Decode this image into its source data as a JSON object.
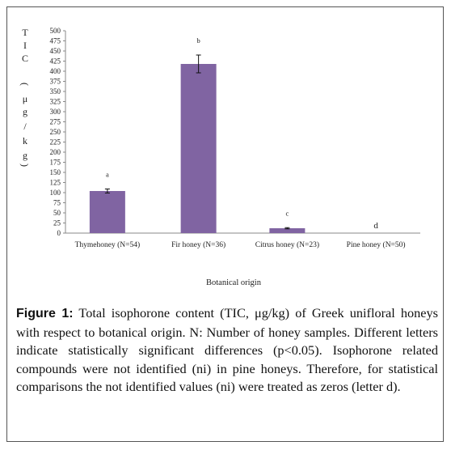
{
  "chart_data": {
    "type": "bar",
    "categories": [
      "Thymehoney (N=54)",
      "Fir honey (N=36)",
      "Citrus honey (N=23)",
      "Pine honey (N=50)"
    ],
    "values": [
      104,
      418,
      12,
      0
    ],
    "errors": [
      5,
      22,
      1.5,
      0
    ],
    "letters": [
      "a",
      "b",
      "c",
      "d"
    ],
    "ylabel_chars": [
      "T",
      "I",
      "C",
      "(",
      "μ",
      "g",
      "/",
      "k",
      "g",
      ")"
    ],
    "xlabel": "Botanical origin",
    "ylim": [
      0,
      500
    ],
    "yticks": [
      "0",
      "25",
      "50",
      "75",
      "100",
      "125",
      "150",
      "175",
      "200",
      "225",
      "250",
      "275",
      "300",
      "325",
      "350",
      "375",
      "400",
      "425",
      "450",
      "475",
      "500"
    ],
    "bar_color": "#8064a2",
    "grid": false
  },
  "caption": {
    "label": "Figure 1:",
    "text": " Total isophorone content (TIC, μg/kg) of Greek unifloral honeys with respect to botanical origin. N: Number of honey samples. Different letters indicate statistically significant differences (p<0.05). Isophorone related compounds were not identified (ni) in pine honeys. Therefore, for statistical comparisons the not identified values (ni) were treated as zeros (letter d)."
  }
}
